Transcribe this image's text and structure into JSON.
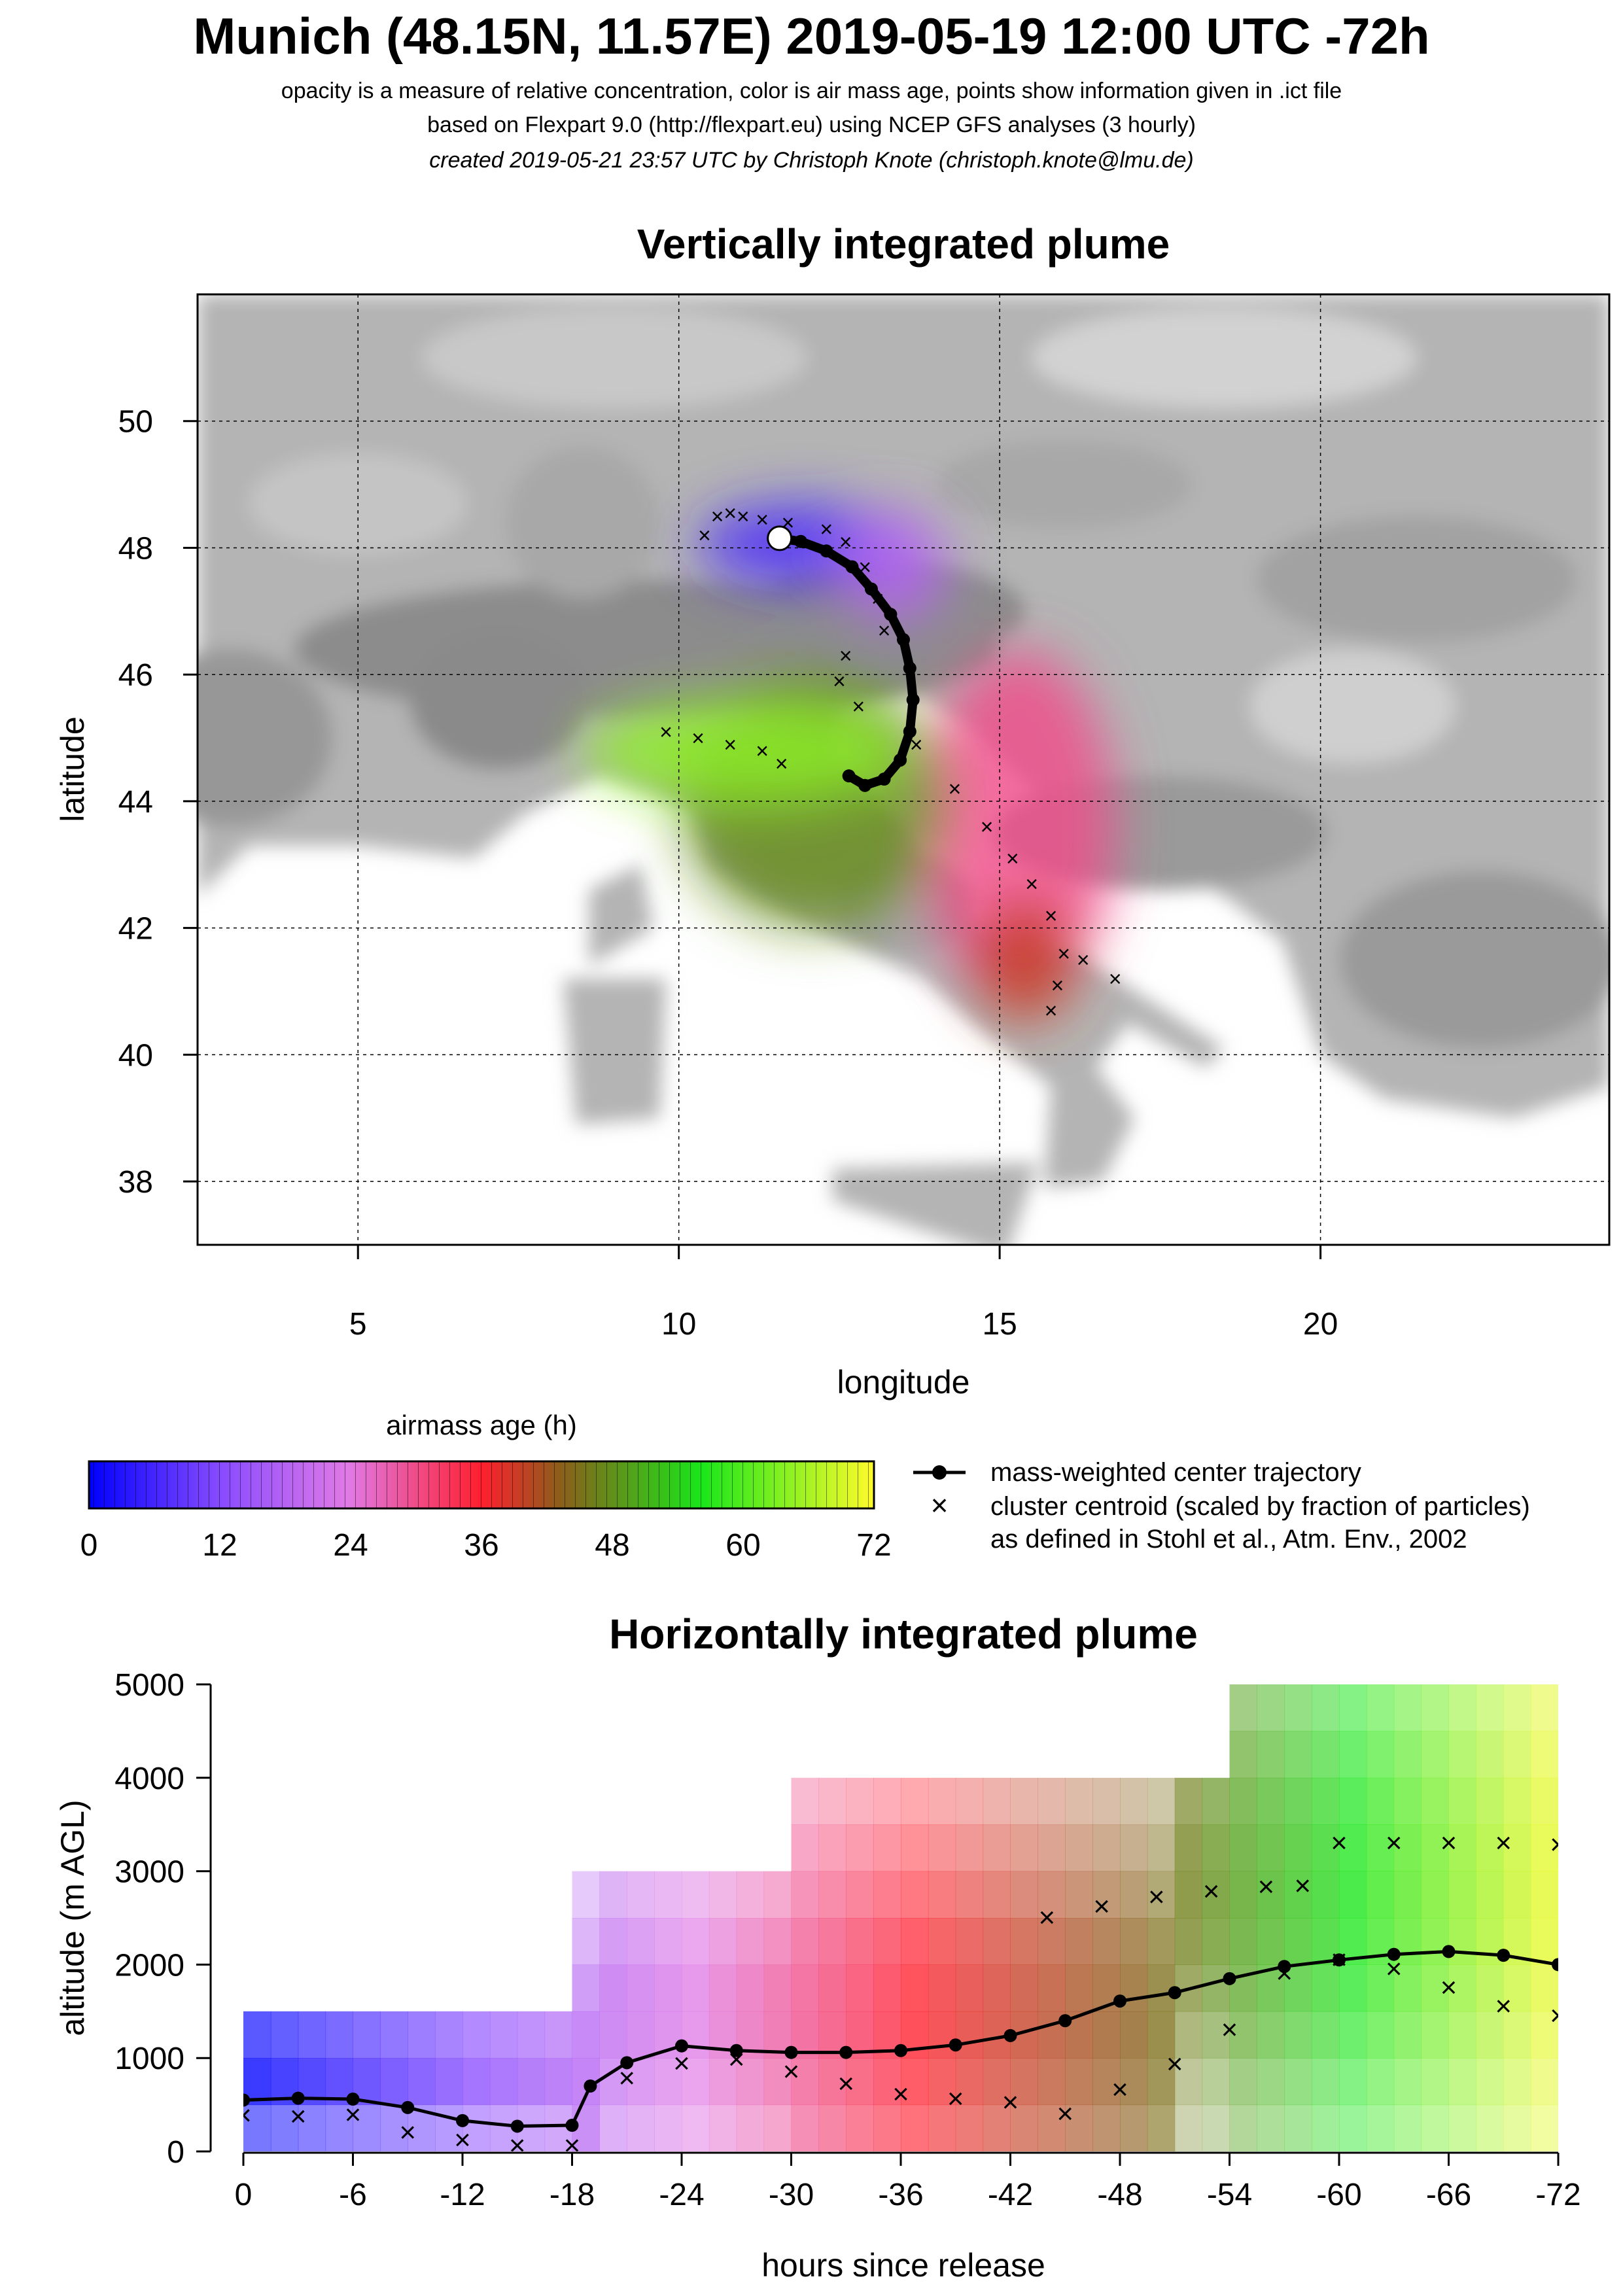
{
  "header": {
    "title": "Munich (48.15N, 11.57E) 2019-05-19 12:00 UTC -72h",
    "subtitle1": "opacity is a measure of relative concentration, color is air mass age, points show information given in .ict file",
    "subtitle2": "based on Flexpart 9.0 (http://flexpart.eu) using NCEP GFS analyses (3 hourly)",
    "subtitle3": "created 2019-05-21 23:57 UTC by Christoph Knote (christoph.knote@lmu.de)"
  },
  "colors": {
    "age_gradient": [
      "#0000ff",
      "#8a4cff",
      "#e07ae6",
      "#ff1f2e",
      "#8b5e1a",
      "#19e619",
      "#fffb2a"
    ],
    "land": "#b4b4b4",
    "sea": "#ffffff",
    "trajectory": "#000000"
  },
  "chart_data": [
    {
      "type": "heatmap",
      "title": "Vertically integrated plume",
      "xlabel": "longitude",
      "ylabel": "latitude",
      "xlim": [
        2.5,
        24.5
      ],
      "ylim": [
        37,
        52
      ],
      "xticks": [
        "5",
        "10",
        "15",
        "20"
      ],
      "yticks": [
        "38",
        "40",
        "42",
        "44",
        "46",
        "48",
        "50"
      ],
      "grid": true,
      "release_point": {
        "lon": 11.57,
        "lat": 48.15
      },
      "center_trajectory": {
        "lon": [
          11.57,
          11.9,
          12.3,
          12.7,
          13.0,
          13.3,
          13.5,
          13.6,
          13.65,
          13.6,
          13.45,
          13.2,
          12.9,
          12.65
        ],
        "lat": [
          48.15,
          48.1,
          47.95,
          47.7,
          47.35,
          46.95,
          46.55,
          46.1,
          45.6,
          45.1,
          44.65,
          44.35,
          44.25,
          44.4
        ]
      },
      "cluster_centroids": {
        "lon": [
          10.4,
          10.6,
          10.8,
          11.0,
          11.3,
          11.7,
          12.3,
          12.6,
          12.9,
          13.1,
          13.2,
          12.6,
          12.5,
          12.8,
          9.8,
          10.3,
          10.8,
          11.3,
          11.6,
          13.7,
          14.3,
          14.8,
          15.2,
          15.5,
          15.8,
          16.0,
          15.9,
          15.8,
          16.3,
          16.8
        ],
        "lat": [
          48.2,
          48.5,
          48.55,
          48.5,
          48.45,
          48.4,
          48.3,
          48.1,
          47.7,
          47.2,
          46.7,
          46.3,
          45.9,
          45.5,
          45.1,
          45.0,
          44.9,
          44.8,
          44.6,
          44.9,
          44.2,
          43.6,
          43.1,
          42.7,
          42.2,
          41.6,
          41.1,
          40.7,
          41.5,
          41.2
        ]
      },
      "plume_lobes": [
        {
          "age_h": 6,
          "lon": [
            10.3,
            13.5
          ],
          "lat": [
            47.4,
            48.7
          ]
        },
        {
          "age_h": 18,
          "lon": [
            12.5,
            14.2
          ],
          "lat": [
            46.8,
            48.6
          ]
        },
        {
          "age_h": 30,
          "lon": [
            13.8,
            16.8
          ],
          "lat": [
            40.8,
            46.4
          ]
        },
        {
          "age_h": 42,
          "lon": [
            14.6,
            16.2
          ],
          "lat": [
            40.5,
            42.5
          ]
        },
        {
          "age_h": 52,
          "lon": [
            10.0,
            14.2
          ],
          "lat": [
            42.0,
            46.0
          ]
        },
        {
          "age_h": 66,
          "lon": [
            8.5,
            13.5
          ],
          "lat": [
            44.0,
            45.6
          ]
        }
      ]
    },
    {
      "type": "bar",
      "title": "",
      "label": "airmass age (h)",
      "range": [
        0,
        72
      ],
      "ticks": [
        "0",
        "12",
        "24",
        "36",
        "48",
        "60",
        "72"
      ]
    },
    {
      "type": "line",
      "title": "Horizontally integrated plume",
      "xlabel": "hours since release",
      "ylabel": "altitude (m AGL)",
      "xlim": [
        0,
        -72
      ],
      "ylim": [
        0,
        5000
      ],
      "xticks": [
        "0",
        "-6",
        "-12",
        "-18",
        "-24",
        "-30",
        "-36",
        "-42",
        "-48",
        "-54",
        "-60",
        "-66",
        "-72"
      ],
      "yticks": [
        "0",
        "1000",
        "2000",
        "3000",
        "4000",
        "5000"
      ],
      "series": [
        {
          "name": "mass-weighted center trajectory",
          "x": [
            0,
            -3,
            -6,
            -9,
            -12,
            -15,
            -18,
            -19,
            -21,
            -24,
            -27,
            -30,
            -33,
            -36,
            -39,
            -42,
            -45,
            -48,
            -51,
            -54,
            -57,
            -60,
            -63,
            -66,
            -69,
            -72
          ],
          "y": [
            550,
            570,
            560,
            470,
            330,
            270,
            280,
            700,
            950,
            1130,
            1080,
            1060,
            1060,
            1080,
            1140,
            1240,
            1400,
            1610,
            1700,
            1850,
            1980,
            2050,
            2110,
            2140,
            2100,
            2000
          ]
        },
        {
          "name": "cluster centroid (scaled by fraction of particles)",
          "x": [
            0,
            -3,
            -6,
            -9,
            -12,
            -15,
            -18,
            -21,
            -24,
            -27,
            -30,
            -33,
            -36,
            -39,
            -42,
            -45,
            -48,
            -51,
            -54,
            -57,
            -60,
            -63,
            -66,
            -69,
            -72,
            -44,
            -47,
            -50,
            -53,
            -56,
            -58,
            -60,
            -63,
            -66,
            -69,
            -72
          ],
          "y": [
            380,
            370,
            390,
            200,
            120,
            60,
            60,
            780,
            940,
            980,
            850,
            720,
            610,
            560,
            520,
            400,
            660,
            930,
            1300,
            1900,
            2050,
            1950,
            1750,
            1550,
            1450,
            2500,
            2620,
            2720,
            2780,
            2830,
            2840,
            3300,
            3300,
            3300,
            3300,
            3280
          ]
        }
      ],
      "age_bands": [
        {
          "age_h": 0,
          "x": [
            0,
            -18
          ],
          "y": [
            0,
            1500
          ]
        },
        {
          "age_h": 24,
          "x": [
            -18,
            -30
          ],
          "y": [
            0,
            3000
          ]
        },
        {
          "age_h": 36,
          "x": [
            -30,
            -45
          ],
          "y": [
            0,
            4000
          ]
        },
        {
          "age_h": 48,
          "x": [
            -45,
            -53
          ],
          "y": [
            0,
            4000
          ]
        },
        {
          "age_h": 60,
          "x": [
            -53,
            -72
          ],
          "y": [
            0,
            5000
          ]
        }
      ]
    }
  ],
  "legend": {
    "center_trajectory": "mass-weighted center trajectory",
    "cluster_line1": "cluster centroid (scaled by fraction of particles)",
    "cluster_line2": "as defined in Stohl et al., Atm. Env., 2002"
  }
}
